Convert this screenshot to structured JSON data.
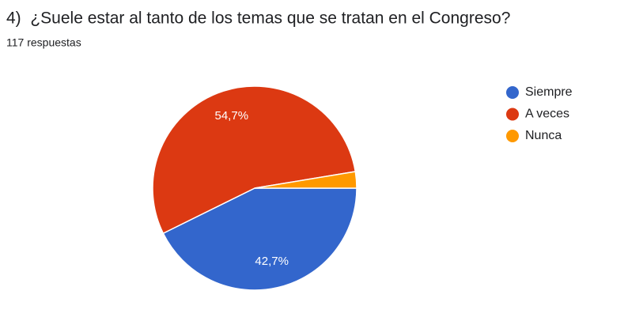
{
  "chart_data": {
    "type": "pie",
    "title": "4)  ¿Suele estar al tanto de los temas que se tratan en el Congreso?",
    "subtitle": "117 respuestas",
    "categories": [
      "Siempre",
      "A veces",
      "Nunca"
    ],
    "values": [
      42.7,
      54.7,
      2.6
    ],
    "value_labels": [
      "42,7%",
      "54,7%",
      null
    ],
    "colors": [
      "#3366cc",
      "#dc3912",
      "#ff9900"
    ],
    "legend": "right"
  }
}
